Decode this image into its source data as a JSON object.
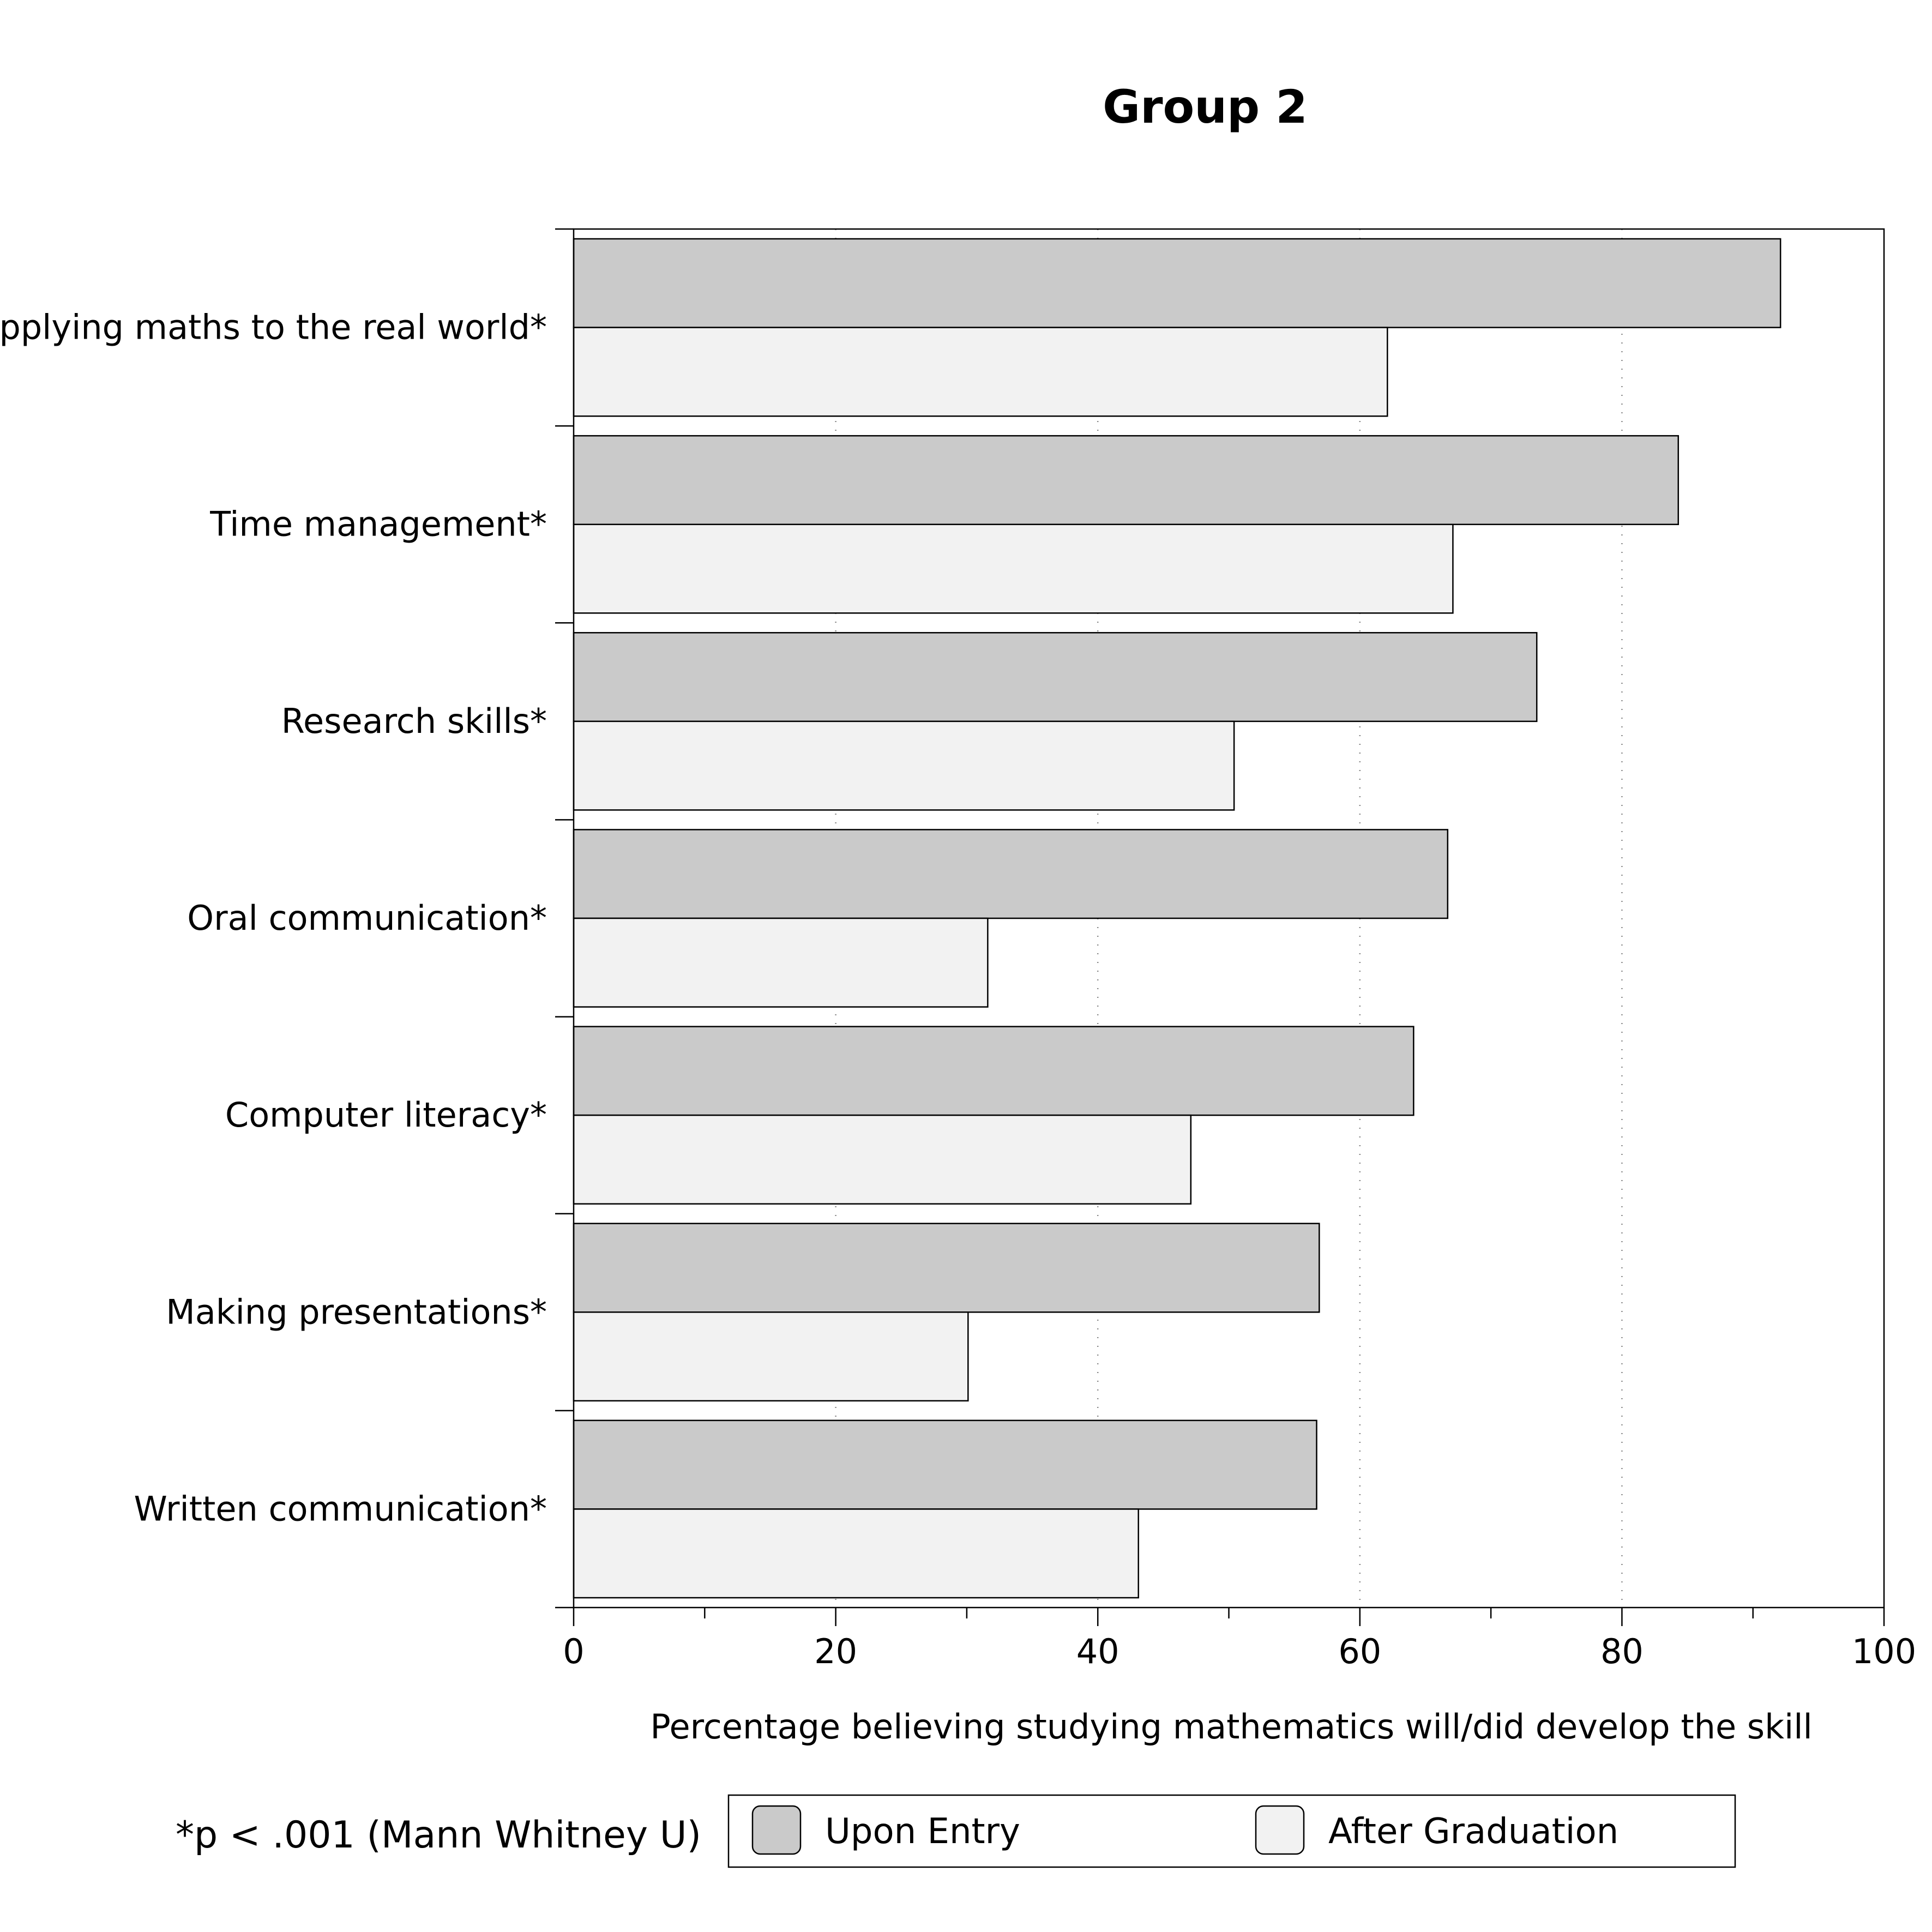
{
  "chart_data": {
    "type": "bar",
    "orientation": "horizontal",
    "title": "Group 2",
    "categories": [
      "Applying maths to the real world*",
      "Time management*",
      "Research skills*",
      "Oral communication*",
      "Computer literacy*",
      "Making presentations*",
      "Written communication*"
    ],
    "series": [
      {
        "name": "Upon Entry",
        "color": "#cacaca",
        "values": [
          92.1,
          84.3,
          73.5,
          66.7,
          64.1,
          56.9,
          56.7
        ]
      },
      {
        "name": "After Graduation",
        "color": "#f2f2f2",
        "values": [
          62.1,
          67.1,
          50.4,
          31.6,
          47.1,
          30.1,
          43.1
        ]
      }
    ],
    "xlabel": "Percentage believing studying mathematics will/did develop the skill",
    "ylabel": "",
    "xlim": [
      0,
      100
    ],
    "xticks": [
      0,
      20,
      40,
      60,
      80,
      100
    ],
    "grid": "vertical dotted",
    "legend_position": "bottom",
    "footnote": "*p < .001 (Mann Whitney U)"
  }
}
